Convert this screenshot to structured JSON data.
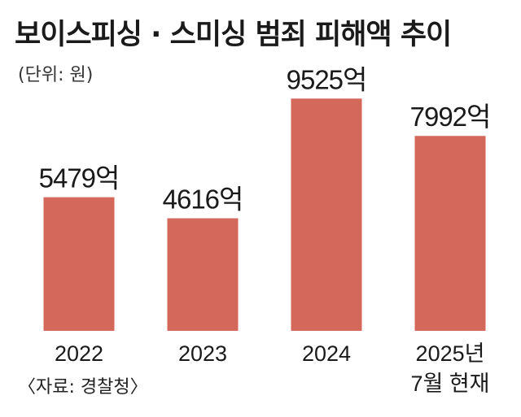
{
  "chart_data": {
    "type": "bar",
    "title": "보이스피싱 · 스미싱 범죄 피해액 추이",
    "unit_label": "(단위: 원)",
    "source": "〈자료: 경찰청〉",
    "categories": [
      [
        "2022"
      ],
      [
        "2023"
      ],
      [
        "2024"
      ],
      [
        "2025년",
        "7월 현재"
      ]
    ],
    "values": [
      5479,
      4616,
      9525,
      7992
    ],
    "value_labels": [
      "5479억",
      "4616억",
      "9525억",
      "7992억"
    ],
    "bar_color": "#d4685a",
    "ylim": [
      0,
      10000
    ],
    "grid": false
  }
}
